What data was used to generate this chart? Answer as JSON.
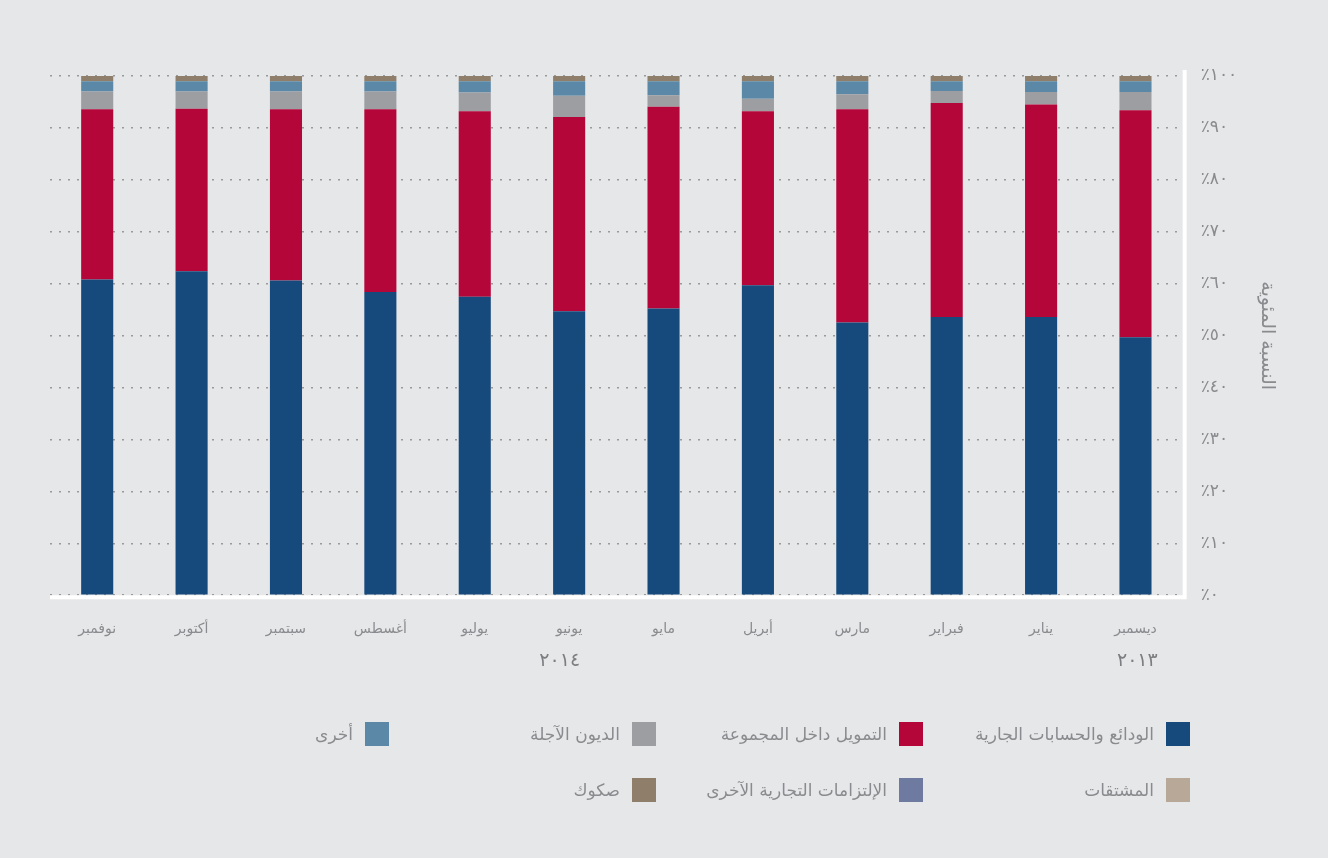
{
  "chart_data": {
    "type": "bar",
    "stacked": true,
    "ylabel": "النسبة المئوية",
    "categories": [
      "نوفمبر",
      "أكتوبر",
      "سبتمبر",
      "أغسطس",
      "يوليو",
      "يونيو",
      "مايو",
      "أبريل",
      "مارس",
      "فبراير",
      "يناير",
      "ديسمبر"
    ],
    "series": [
      {
        "name": "الودائع والحسابات الجارية",
        "color": "#174a7c",
        "values": [
          60.8,
          62.4,
          60.6,
          58.4,
          57.5,
          54.7,
          55.2,
          59.7,
          52.5,
          53.6,
          53.6,
          49.7
        ]
      },
      {
        "name": "التمويل داخل المجموعة",
        "color": "#b5063a",
        "values": [
          32.8,
          31.3,
          33.0,
          35.2,
          35.7,
          37.4,
          38.9,
          33.5,
          41.1,
          41.2,
          40.9,
          43.7
        ]
      },
      {
        "name": "الديون الآجلة",
        "color": "#9d9ea2",
        "values": [
          3.4,
          3.3,
          3.4,
          3.4,
          3.6,
          4.1,
          2.2,
          2.4,
          2.9,
          2.3,
          2.4,
          3.5
        ]
      },
      {
        "name": "أخرى",
        "color": "#5b88a6",
        "values": [
          2.0,
          2.0,
          2.0,
          2.0,
          2.2,
          2.8,
          2.7,
          3.4,
          2.5,
          1.9,
          2.1,
          2.1
        ]
      },
      {
        "name": "المشتقات",
        "color": "#b8a898",
        "values": [
          0,
          0,
          0,
          0,
          0,
          0,
          0,
          0,
          0,
          0,
          0,
          0
        ]
      },
      {
        "name": "الإلتزامات التجارية الآخرى",
        "color": "#6f7aa0",
        "values": [
          0,
          0,
          0,
          0,
          0,
          0,
          0,
          0,
          0,
          0,
          0,
          0
        ]
      },
      {
        "name": "صكوك",
        "color": "#8f7f6a",
        "values": [
          1.0,
          1.0,
          1.0,
          1.0,
          1.0,
          1.0,
          1.0,
          1.0,
          1.0,
          1.0,
          1.0,
          1.0
        ]
      }
    ],
    "ylim": [
      0,
      100
    ],
    "yticks": [
      {
        "value": 0,
        "label": "٪٠"
      },
      {
        "value": 10,
        "label": "٪١٠"
      },
      {
        "value": 20,
        "label": "٪٢٠"
      },
      {
        "value": 30,
        "label": "٪٣٠"
      },
      {
        "value": 40,
        "label": "٪٤٠"
      },
      {
        "value": 50,
        "label": "٪٥٠"
      },
      {
        "value": 60,
        "label": "٪٦٠"
      },
      {
        "value": 70,
        "label": "٪٧٠"
      },
      {
        "value": 80,
        "label": "٪٨٠"
      },
      {
        "value": 90,
        "label": "٪٩٠"
      },
      {
        "value": 100,
        "label": "٪١٠٠"
      }
    ],
    "annotations": [
      "٢٠١٤",
      "٢٠١٣"
    ],
    "grid": "y",
    "legend": "bottom"
  }
}
